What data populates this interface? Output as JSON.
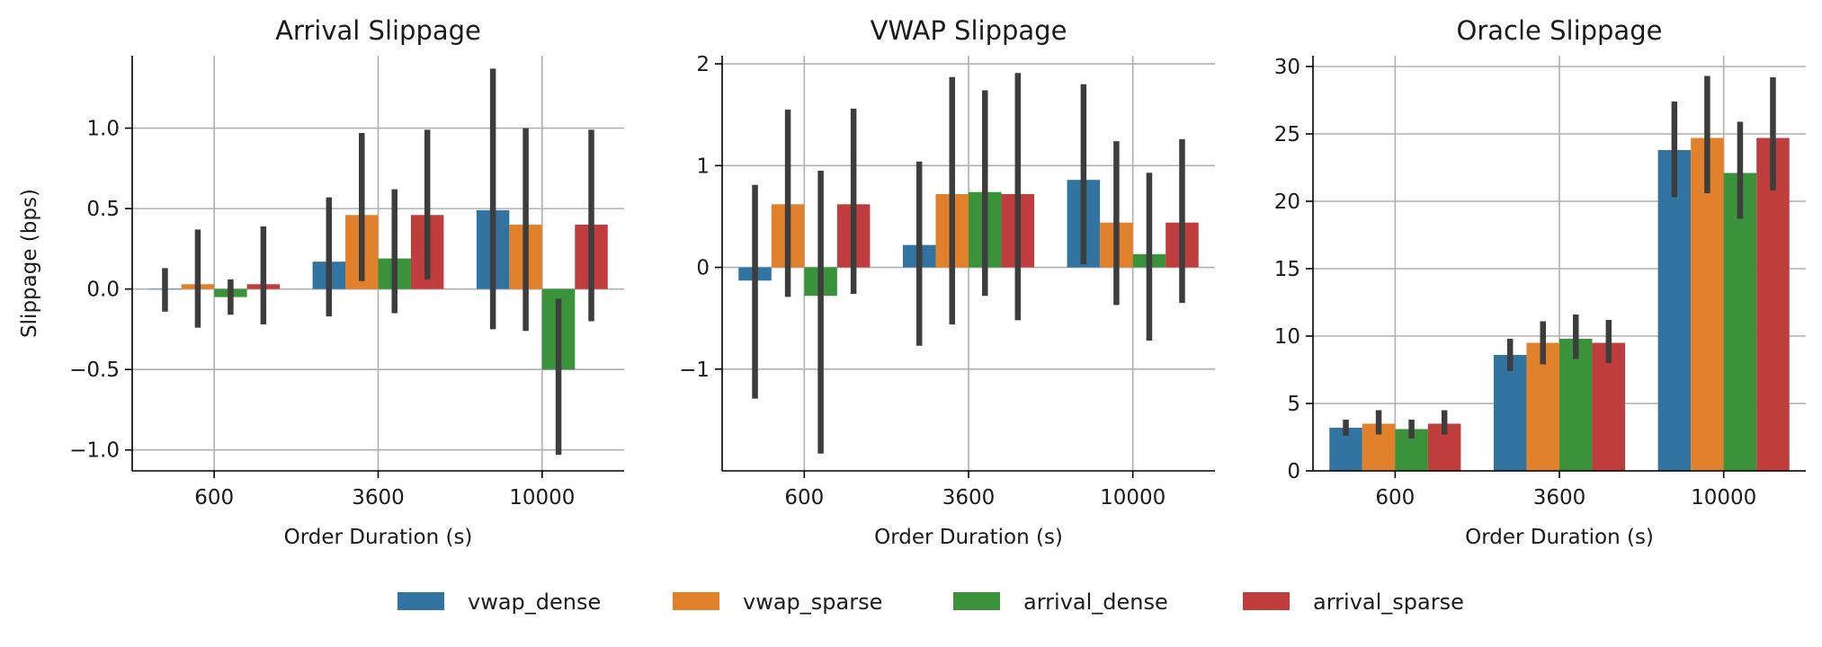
{
  "chart_data": [
    {
      "type": "bar",
      "title": "Arrival Slippage",
      "xlabel": "Order Duration (s)",
      "ylabel": "Slippage (bps)",
      "categories": [
        "600",
        "3600",
        "10000"
      ],
      "ylim": [
        -1.13,
        1.45
      ],
      "yticks": [
        -1.0,
        -0.5,
        0.0,
        0.5,
        1.0
      ],
      "ytick_labels": [
        "−1.0",
        "−0.5",
        "0.0",
        "0.5",
        "1.0"
      ],
      "grid": true,
      "series": [
        {
          "name": "vwap_dense",
          "color": "#3274a1",
          "values": [
            0.0,
            0.17,
            0.49
          ],
          "err_low": [
            -0.14,
            -0.17,
            -0.25
          ],
          "err_high": [
            0.13,
            0.57,
            1.37
          ]
        },
        {
          "name": "vwap_sparse",
          "color": "#e1812c",
          "values": [
            0.03,
            0.46,
            0.4
          ],
          "err_low": [
            -0.24,
            0.05,
            -0.26
          ],
          "err_high": [
            0.37,
            0.97,
            1.0
          ]
        },
        {
          "name": "arrival_dense",
          "color": "#3a923a",
          "values": [
            -0.05,
            0.19,
            -0.5
          ],
          "err_low": [
            -0.16,
            -0.15,
            -1.03
          ],
          "err_high": [
            0.06,
            0.62,
            -0.06
          ]
        },
        {
          "name": "arrival_sparse",
          "color": "#c03d3e",
          "values": [
            0.03,
            0.46,
            0.4
          ],
          "err_low": [
            -0.22,
            0.06,
            -0.2
          ],
          "err_high": [
            0.39,
            0.99,
            0.99
          ]
        }
      ]
    },
    {
      "type": "bar",
      "title": "VWAP Slippage",
      "xlabel": "Order Duration (s)",
      "ylabel": "",
      "categories": [
        "600",
        "3600",
        "10000"
      ],
      "ylim": [
        -2.0,
        2.08
      ],
      "yticks": [
        -1,
        0,
        1,
        2
      ],
      "ytick_labels": [
        "−1",
        "0",
        "1",
        "2"
      ],
      "grid": true,
      "series": [
        {
          "name": "vwap_dense",
          "color": "#3274a1",
          "values": [
            -0.13,
            0.22,
            0.86
          ],
          "err_low": [
            -1.29,
            -0.77,
            0.03
          ],
          "err_high": [
            0.81,
            1.04,
            1.8
          ]
        },
        {
          "name": "vwap_sparse",
          "color": "#e1812c",
          "values": [
            0.62,
            0.72,
            0.44
          ],
          "err_low": [
            -0.29,
            -0.56,
            -0.37
          ],
          "err_high": [
            1.55,
            1.87,
            1.24
          ]
        },
        {
          "name": "arrival_dense",
          "color": "#3a923a",
          "values": [
            -0.28,
            0.74,
            0.13
          ],
          "err_low": [
            -1.83,
            -0.28,
            -0.72
          ],
          "err_high": [
            0.95,
            1.74,
            0.93
          ]
        },
        {
          "name": "arrival_sparse",
          "color": "#c03d3e",
          "values": [
            0.62,
            0.72,
            0.44
          ],
          "err_low": [
            -0.26,
            -0.52,
            -0.35
          ],
          "err_high": [
            1.56,
            1.91,
            1.26
          ]
        }
      ]
    },
    {
      "type": "bar",
      "title": "Oracle Slippage",
      "xlabel": "Order Duration (s)",
      "ylabel": "",
      "categories": [
        "600",
        "3600",
        "10000"
      ],
      "ylim": [
        0,
        30.8
      ],
      "yticks": [
        0,
        5,
        10,
        15,
        20,
        25,
        30
      ],
      "ytick_labels": [
        "0",
        "5",
        "10",
        "15",
        "20",
        "25",
        "30"
      ],
      "grid": true,
      "series": [
        {
          "name": "vwap_dense",
          "color": "#3274a1",
          "values": [
            3.2,
            8.6,
            23.8
          ],
          "err_low": [
            2.6,
            7.4,
            20.3
          ],
          "err_high": [
            3.8,
            9.8,
            27.4
          ]
        },
        {
          "name": "vwap_sparse",
          "color": "#e1812c",
          "values": [
            3.5,
            9.5,
            24.7
          ],
          "err_low": [
            2.7,
            7.9,
            20.6
          ],
          "err_high": [
            4.5,
            11.1,
            29.3
          ]
        },
        {
          "name": "arrival_dense",
          "color": "#3a923a",
          "values": [
            3.1,
            9.8,
            22.1
          ],
          "err_low": [
            2.4,
            8.3,
            18.7
          ],
          "err_high": [
            3.8,
            11.6,
            25.9
          ]
        },
        {
          "name": "arrival_sparse",
          "color": "#c03d3e",
          "values": [
            3.5,
            9.5,
            24.7
          ],
          "err_low": [
            2.7,
            8.0,
            20.8
          ],
          "err_high": [
            4.5,
            11.2,
            29.2
          ]
        }
      ]
    }
  ],
  "legend": {
    "placement": "bottom-center",
    "entries": [
      {
        "label": "vwap_dense",
        "color": "#3274a1"
      },
      {
        "label": "vwap_sparse",
        "color": "#e1812c"
      },
      {
        "label": "arrival_dense",
        "color": "#3a923a"
      },
      {
        "label": "arrival_sparse",
        "color": "#c03d3e"
      }
    ]
  },
  "colors": {
    "grid": "#b0b0b0",
    "axis": "#000000",
    "errorbar": "#3d3d3d"
  }
}
